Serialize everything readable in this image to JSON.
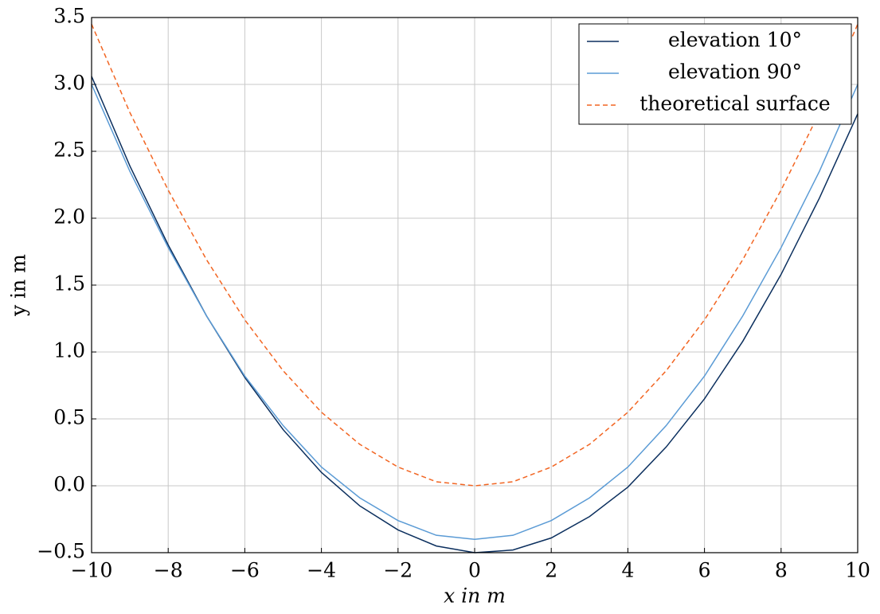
{
  "chart_data": {
    "type": "line",
    "x_label": "x in m",
    "y_label": "y in m",
    "x": [
      -10,
      -9,
      -8,
      -7,
      -6,
      -5,
      -4,
      -3,
      -2,
      -1,
      0,
      1,
      2,
      3,
      4,
      5,
      6,
      7,
      8,
      9,
      10
    ],
    "series": [
      {
        "name": "elevation 10°",
        "color": "#0b2f5e",
        "dash": "solid",
        "values": [
          3.06,
          2.39,
          1.8,
          1.27,
          0.81,
          0.42,
          0.1,
          -0.15,
          -0.33,
          -0.45,
          -0.5,
          -0.48,
          -0.39,
          -0.23,
          -0.01,
          0.29,
          0.65,
          1.08,
          1.58,
          2.15,
          2.78
        ]
      },
      {
        "name": "elevation 90°",
        "color": "#5b9bd5",
        "dash": "solid",
        "values": [
          3.0,
          2.35,
          1.78,
          1.27,
          0.82,
          0.45,
          0.14,
          -0.09,
          -0.26,
          -0.37,
          -0.4,
          -0.37,
          -0.26,
          -0.09,
          0.14,
          0.45,
          0.82,
          1.27,
          1.78,
          2.35,
          3.0
        ]
      },
      {
        "name": "theoretical surface",
        "color": "#f26522",
        "dash": "dashed",
        "values": [
          3.45,
          2.79,
          2.21,
          1.69,
          1.24,
          0.86,
          0.55,
          0.31,
          0.14,
          0.03,
          0,
          0.03,
          0.14,
          0.31,
          0.55,
          0.86,
          1.24,
          1.69,
          2.21,
          2.79,
          3.45
        ]
      }
    ],
    "xlim": [
      -10,
      10
    ],
    "xticks": [
      {
        "value": -10,
        "label": "−10"
      },
      {
        "value": -8,
        "label": "−8"
      },
      {
        "value": -6,
        "label": "−6"
      },
      {
        "value": -4,
        "label": "−4"
      },
      {
        "value": -2,
        "label": "−2"
      },
      0,
      2,
      4,
      6,
      8,
      10
    ],
    "ylim": [
      -0.5,
      3.5
    ],
    "yticks": [
      {
        "value": -0.5,
        "label": "−0.5"
      },
      {
        "value": 0,
        "label": "0.0"
      },
      0.5,
      {
        "value": 1,
        "label": "1.0"
      },
      1.5,
      {
        "value": 2,
        "label": "2.0"
      },
      2.5,
      {
        "value": 3,
        "label": "3.0"
      },
      3.5
    ],
    "grid": true,
    "legend": "top-right"
  }
}
